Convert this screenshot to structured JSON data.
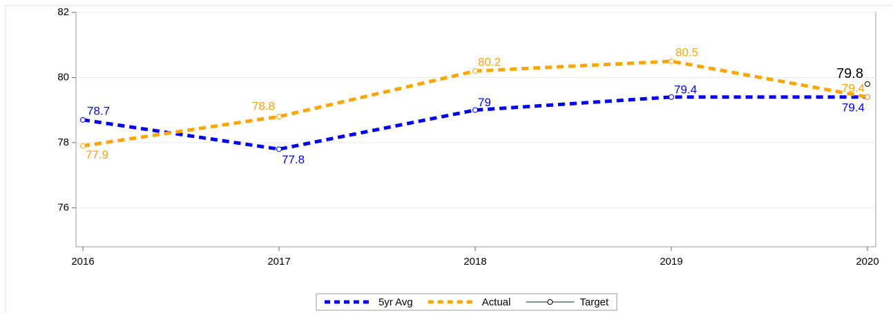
{
  "chart_data": {
    "type": "line",
    "categories": [
      "2016",
      "2017",
      "2018",
      "2019",
      "2020"
    ],
    "series": [
      {
        "name": "5yr Avg",
        "color": "#0000ff",
        "style": "dashed",
        "values": [
          78.7,
          77.8,
          79,
          79.4,
          79.4
        ]
      },
      {
        "name": "Actual",
        "color": "#ffa500",
        "style": "dashed",
        "values": [
          77.9,
          78.8,
          80.2,
          80.5,
          79.4
        ]
      },
      {
        "name": "Target",
        "color": "#2e5060",
        "style": "solid",
        "label_color": "#000000",
        "values": [
          null,
          null,
          null,
          null,
          79.8
        ]
      }
    ],
    "ylim": [
      74.8,
      82
    ],
    "yticks": [
      76,
      78,
      80,
      82
    ],
    "grid": true,
    "legend": "bottom"
  }
}
